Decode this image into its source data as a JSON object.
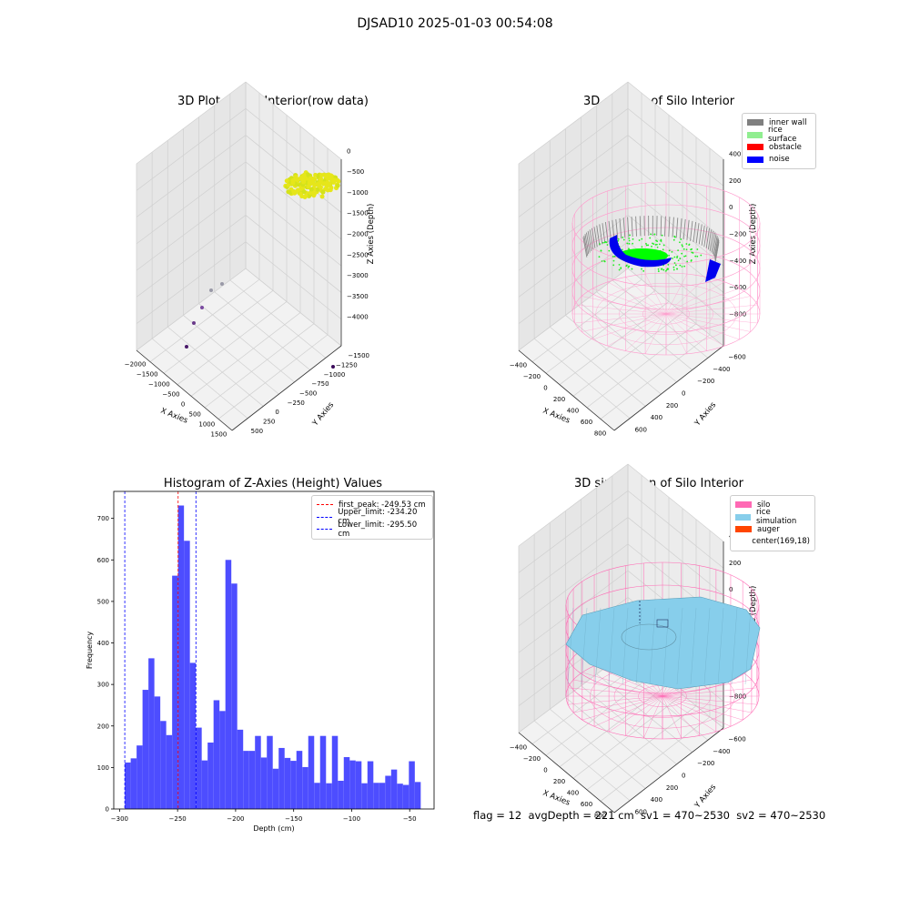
{
  "figure": {
    "suptitle": "DJSAD10 2025-01-03 00:54:08",
    "footer": "flag = 12  avgDepth = 221 cm  sv1 = 470~2530  sv2 = 470~2530"
  },
  "panel1": {
    "title": "3D Plot of Silo Interior(row data)",
    "xlabel": "X Axies",
    "ylabel": "Y Axies",
    "zlabel": "Z Axies (Depth)",
    "xticks": [
      "−2000",
      "−1500",
      "−1000",
      "−500",
      "0",
      "500",
      "1000",
      "1500"
    ],
    "yticks": [
      "500",
      "250",
      "0",
      "−250",
      "−500",
      "−750",
      "−1000",
      "−1250",
      "−1500"
    ],
    "zticks": [
      "0",
      "−500",
      "−1000",
      "−1500",
      "−2000",
      "−2500",
      "−3000",
      "−3500",
      "−4000"
    ]
  },
  "panel2": {
    "title": "3D classify of Silo Interior",
    "xlabel": "X Axies",
    "ylabel": "Y Axies",
    "zlabel": "Z Axies (Depth)",
    "xticks": [
      "−400",
      "−200",
      "0",
      "200",
      "400",
      "600",
      "800"
    ],
    "yticks": [
      "600",
      "400",
      "200",
      "0",
      "−200",
      "−400",
      "−600"
    ],
    "zticks": [
      "400",
      "200",
      "0",
      "−200",
      "−400",
      "−600",
      "−800"
    ],
    "legend": [
      {
        "label": "inner wall",
        "color": "#808080"
      },
      {
        "label": "rice surface",
        "color": "#90ee90"
      },
      {
        "label": "obstacle",
        "color": "#ff0000"
      },
      {
        "label": "noise",
        "color": "#0000ff"
      }
    ]
  },
  "panel4": {
    "title": "3D simulation of Silo Interior",
    "xlabel": "X Axies",
    "ylabel": "Y Axies",
    "zlabel": "Z Axies (Depth)",
    "xticks": [
      "−400",
      "−200",
      "0",
      "200",
      "400",
      "600",
      "800"
    ],
    "yticks": [
      "600",
      "400",
      "200",
      "0",
      "−200",
      "−400",
      "−600"
    ],
    "zticks": [
      "400",
      "200",
      "0",
      "−200",
      "−400",
      "−600",
      "−800"
    ],
    "legend": [
      {
        "label": "silo",
        "color": "#ff69b4"
      },
      {
        "label": "rice simulation",
        "color": "#87ceeb"
      },
      {
        "label": "auger",
        "color": "#ff4500"
      },
      {
        "label": "center(169,18)",
        "color": ""
      }
    ]
  },
  "chart_data": {
    "type": "bar",
    "title": "Histogram of Z-Axies (Height) Values",
    "xlabel": "Depth (cm)",
    "ylabel": "Frequency",
    "xlim": [
      -305,
      -29
    ],
    "ylim": [
      0,
      765
    ],
    "xticks": [
      -300,
      -250,
      -200,
      -150,
      -100,
      -50
    ],
    "yticks": [
      0,
      100,
      200,
      300,
      400,
      500,
      600,
      700
    ],
    "bar_color": "#4d4dff",
    "bin_width": 5.1,
    "bin_start": -295.5,
    "values": [
      112,
      122,
      153,
      287,
      363,
      271,
      212,
      178,
      562,
      731,
      646,
      352,
      196,
      117,
      160,
      262,
      236,
      600,
      543,
      191,
      140,
      140,
      176,
      124,
      176,
      97,
      147,
      123,
      116,
      140,
      101,
      176,
      63,
      176,
      62,
      176,
      68,
      125,
      117,
      115,
      62,
      115,
      63,
      63,
      80,
      95,
      61,
      58,
      115,
      65
    ],
    "vlines": [
      {
        "x": -249.53,
        "color": "#ff0000",
        "label": "first_peak: -249.53 cm"
      },
      {
        "x": -234.2,
        "color": "#0000ff",
        "label": "Upper_limit: -234.20 cm"
      },
      {
        "x": -295.5,
        "color": "#0000ff",
        "label": "Lower_limit: -295.50 cm"
      }
    ],
    "legend_position": "upper right"
  }
}
